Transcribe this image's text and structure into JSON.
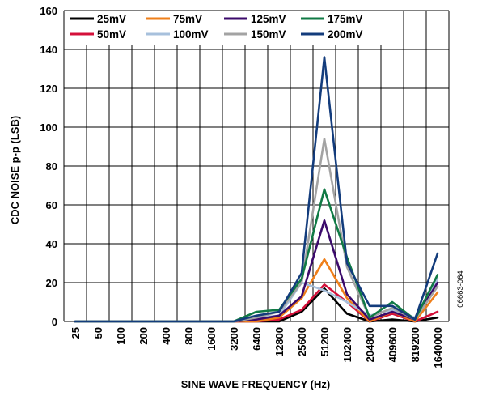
{
  "chart_data": {
    "type": "line",
    "title": "",
    "xlabel": "SINE WAVE FREQUENCY (Hz)",
    "ylabel": "CDC NOISE p-p (LSB)",
    "categories": [
      "25",
      "50",
      "100",
      "200",
      "400",
      "800",
      "1600",
      "3200",
      "6400",
      "12800",
      "25600",
      "51200",
      "102400",
      "204800",
      "409600",
      "819200",
      "1640000"
    ],
    "y_ticks": [
      "0",
      "20",
      "40",
      "60",
      "80",
      "100",
      "120",
      "140",
      "160"
    ],
    "ylim": [
      0,
      160
    ],
    "grid": true,
    "legend_position": "top-left",
    "series": [
      {
        "name": "25mV",
        "color": "#000000",
        "values": [
          0,
          0,
          0,
          0,
          0,
          0,
          0,
          0,
          0,
          0,
          5,
          17,
          4,
          0,
          1,
          0,
          2
        ]
      },
      {
        "name": "50mV",
        "color": "#d4103a",
        "values": [
          0,
          0,
          0,
          0,
          0,
          0,
          0,
          0,
          0,
          1,
          6,
          19,
          10,
          0,
          4,
          0,
          5
        ]
      },
      {
        "name": "75mV",
        "color": "#ef7f1a",
        "values": [
          0,
          0,
          0,
          0,
          0,
          0,
          0,
          0,
          0,
          2,
          12,
          32,
          12,
          0,
          5,
          0,
          15
        ]
      },
      {
        "name": "100mV",
        "color": "#a7c0dc",
        "values": [
          0,
          0,
          0,
          0,
          0,
          0,
          0,
          0,
          2,
          3,
          20,
          16,
          10,
          3,
          6,
          2,
          22
        ]
      },
      {
        "name": "125mV",
        "color": "#3b0a6b",
        "values": [
          0,
          0,
          0,
          0,
          0,
          0,
          0,
          0,
          1,
          3,
          13,
          52,
          14,
          1,
          5,
          1,
          20
        ]
      },
      {
        "name": "150mV",
        "color": "#a3a3a3",
        "values": [
          0,
          0,
          0,
          0,
          0,
          0,
          0,
          0,
          2,
          5,
          20,
          94,
          28,
          2,
          7,
          1,
          18
        ]
      },
      {
        "name": "175mV",
        "color": "#107a45",
        "values": [
          0,
          0,
          0,
          0,
          0,
          0,
          0,
          0,
          5,
          6,
          22,
          68,
          33,
          2,
          10,
          1,
          24
        ]
      },
      {
        "name": "200mV",
        "color": "#133c7c",
        "values": [
          0,
          0,
          0,
          0,
          0,
          0,
          0,
          0,
          3,
          5,
          25,
          136,
          30,
          8,
          8,
          1,
          35
        ]
      }
    ]
  },
  "side_note": "06663-064"
}
